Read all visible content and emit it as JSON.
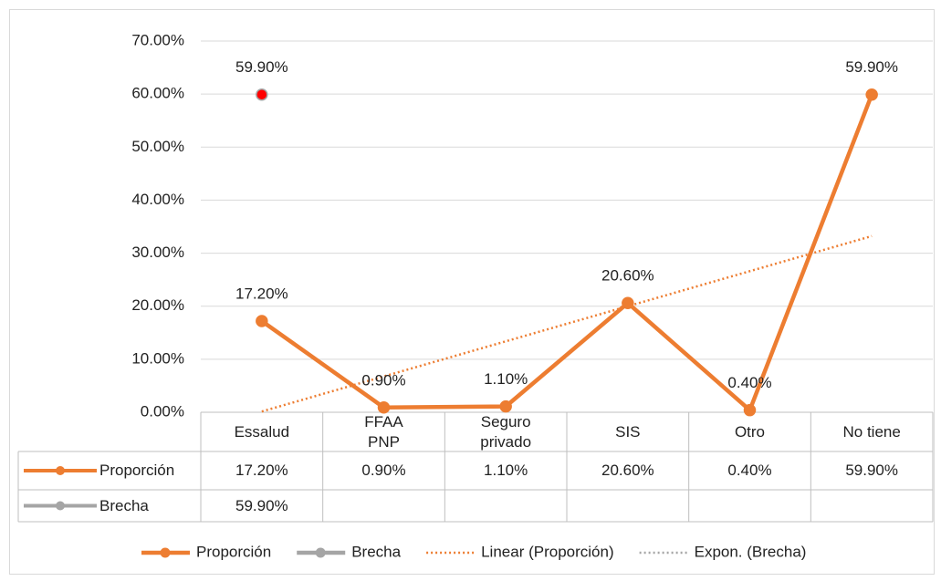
{
  "chart_data": {
    "type": "line",
    "categories": [
      "Essalud",
      "FFAA\nPNP",
      "Seguro\nprivado",
      "SIS",
      "Otro",
      "No tiene"
    ],
    "series": [
      {
        "name": "Proporción",
        "color": "#ed7d31",
        "values": [
          17.2,
          0.9,
          1.1,
          20.6,
          0.4,
          59.9
        ],
        "value_labels": [
          "17.20%",
          "0.90%",
          "1.10%",
          "20.60%",
          "0.40%",
          "59.90%"
        ]
      },
      {
        "name": "Brecha",
        "color": "#a5a5a5",
        "marker_color": "#ff0000",
        "values": [
          59.9,
          null,
          null,
          null,
          null,
          null
        ],
        "value_labels": [
          "59.90%",
          null,
          null,
          null,
          null,
          null
        ]
      }
    ],
    "trendlines": [
      {
        "name": "Linear (Proporción)",
        "type": "linear",
        "series": 0,
        "color": "#ed7d31"
      },
      {
        "name": "Expon. (Brecha)",
        "type": "exponential",
        "series": 1,
        "color": "#a5a5a5"
      }
    ],
    "ylim": [
      0,
      70
    ],
    "yticks": [
      {
        "value": 0,
        "label": "0.00%"
      },
      {
        "value": 10,
        "label": "10.00%"
      },
      {
        "value": 20,
        "label": "20.00%"
      },
      {
        "value": 30,
        "label": "30.00%"
      },
      {
        "value": 40,
        "label": "40.00%"
      },
      {
        "value": 50,
        "label": "50.00%"
      },
      {
        "value": 60,
        "label": "60.00%"
      },
      {
        "value": 70,
        "label": "70.00%"
      }
    ],
    "grid": true,
    "data_table": true,
    "legend": "bottom"
  }
}
